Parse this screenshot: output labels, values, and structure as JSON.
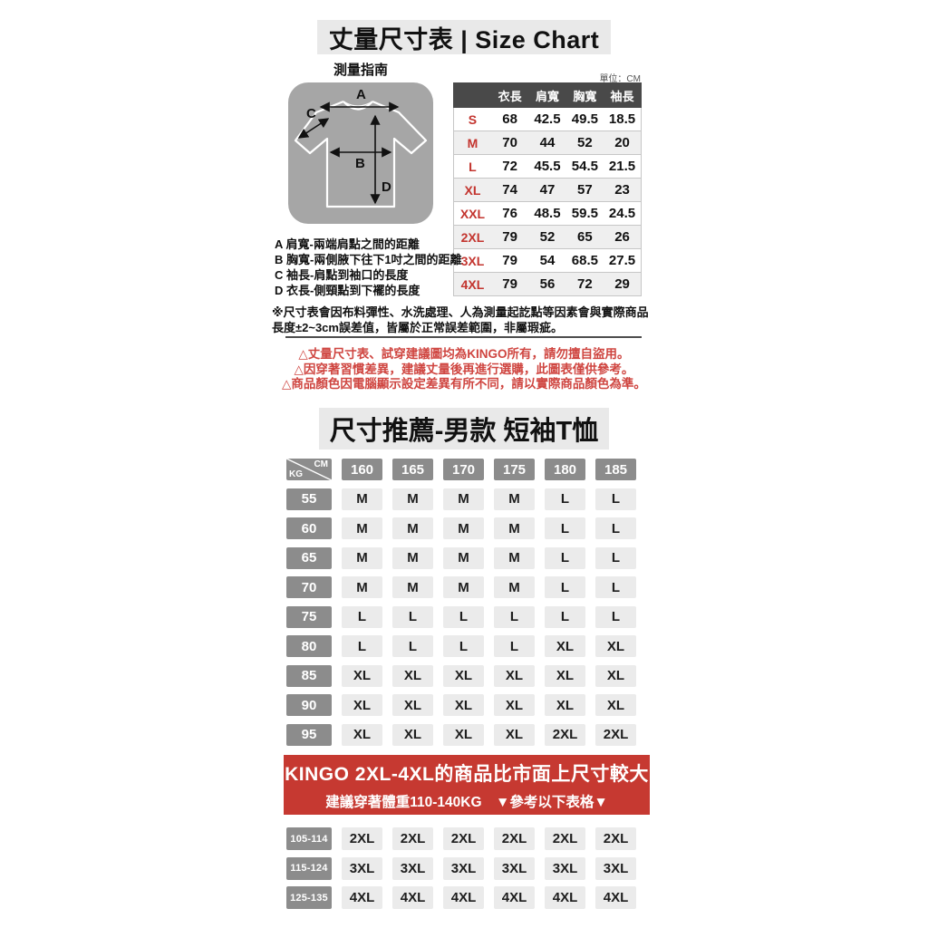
{
  "page": {
    "title": "丈量尺寸表 | Size Chart",
    "unit_label": "單位：CM"
  },
  "measure_guide": {
    "title": "測量指南",
    "labels": {
      "a": "A",
      "b": "B",
      "c": "C",
      "d": "D"
    },
    "notes": [
      "A 肩寬-兩端肩點之間的距離",
      "B 胸寬-兩側腋下往下1吋之間的距離",
      "C 袖長-肩點到袖口的長度",
      "D 衣長-側頸點到下襬的長度"
    ]
  },
  "size_table": {
    "headers": [
      "",
      "衣長",
      "肩寬",
      "胸寬",
      "袖長"
    ],
    "rows": [
      {
        "size": "S",
        "values": [
          "68",
          "42.5",
          "49.5",
          "18.5"
        ]
      },
      {
        "size": "M",
        "values": [
          "70",
          "44",
          "52",
          "20"
        ]
      },
      {
        "size": "L",
        "values": [
          "72",
          "45.5",
          "54.5",
          "21.5"
        ]
      },
      {
        "size": "XL",
        "values": [
          "74",
          "47",
          "57",
          "23"
        ]
      },
      {
        "size": "XXL",
        "values": [
          "76",
          "48.5",
          "59.5",
          "24.5"
        ]
      },
      {
        "size": "2XL",
        "values": [
          "79",
          "52",
          "65",
          "26"
        ]
      },
      {
        "size": "3XL",
        "values": [
          "79",
          "54",
          "68.5",
          "27.5"
        ]
      },
      {
        "size": "4XL",
        "values": [
          "79",
          "56",
          "72",
          "29"
        ]
      }
    ]
  },
  "disclaimer": "※尺寸表會因布料彈性、水洗處理、人為測量起訖點等因素會與實際商品長度±2~3cm誤差值，皆屬於正常誤差範圍，非屬瑕疵。",
  "warnings": [
    "△丈量尺寸表、試穿建議圖均為KINGO所有，請勿擅自盜用。",
    "△因穿著習慣差異，建議丈量後再進行選購，此圖表僅供參考。",
    "△商品顏色因電腦顯示設定差異有所不同，請以實際商品顏色為準。"
  ],
  "recommend": {
    "title": "尺寸推薦-男款 短袖T恤",
    "corner": {
      "top": "CM",
      "bottom": "KG"
    },
    "columns": [
      "160",
      "165",
      "170",
      "175",
      "180",
      "185"
    ],
    "rows": [
      {
        "kg": "55",
        "sizes": [
          "M",
          "M",
          "M",
          "M",
          "L",
          "L"
        ]
      },
      {
        "kg": "60",
        "sizes": [
          "M",
          "M",
          "M",
          "M",
          "L",
          "L"
        ]
      },
      {
        "kg": "65",
        "sizes": [
          "M",
          "M",
          "M",
          "M",
          "L",
          "L"
        ]
      },
      {
        "kg": "70",
        "sizes": [
          "M",
          "M",
          "M",
          "M",
          "L",
          "L"
        ]
      },
      {
        "kg": "75",
        "sizes": [
          "L",
          "L",
          "L",
          "L",
          "L",
          "L"
        ]
      },
      {
        "kg": "80",
        "sizes": [
          "L",
          "L",
          "L",
          "L",
          "XL",
          "XL"
        ]
      },
      {
        "kg": "85",
        "sizes": [
          "XL",
          "XL",
          "XL",
          "XL",
          "XL",
          "XL"
        ]
      },
      {
        "kg": "90",
        "sizes": [
          "XL",
          "XL",
          "XL",
          "XL",
          "XL",
          "XL"
        ]
      },
      {
        "kg": "95",
        "sizes": [
          "XL",
          "XL",
          "XL",
          "XL",
          "2XL",
          "2XL"
        ]
      }
    ]
  },
  "banner": {
    "line1": "KINGO 2XL-4XL的商品比市面上尺寸較大",
    "line2": "建議穿著體重110-140KG　▼參考以下表格▼"
  },
  "plus_table": {
    "rows": [
      {
        "kg": "105-114",
        "sizes": [
          "2XL",
          "2XL",
          "2XL",
          "2XL",
          "2XL",
          "2XL"
        ]
      },
      {
        "kg": "115-124",
        "sizes": [
          "3XL",
          "3XL",
          "3XL",
          "3XL",
          "3XL",
          "3XL"
        ]
      },
      {
        "kg": "125-135",
        "sizes": [
          "4XL",
          "4XL",
          "4XL",
          "4XL",
          "4XL",
          "4XL"
        ]
      }
    ]
  },
  "colors": {
    "banner_red": "#c63931",
    "size_label_red": "#c3342e",
    "warning_red": "#cf4540",
    "table_header_dark": "#494949",
    "matrix_gray": "#8c8c8c",
    "cell_gray": "#ebebeb",
    "title_bg": "#e9e9e9",
    "diagram_bg": "#a6a6a6"
  }
}
